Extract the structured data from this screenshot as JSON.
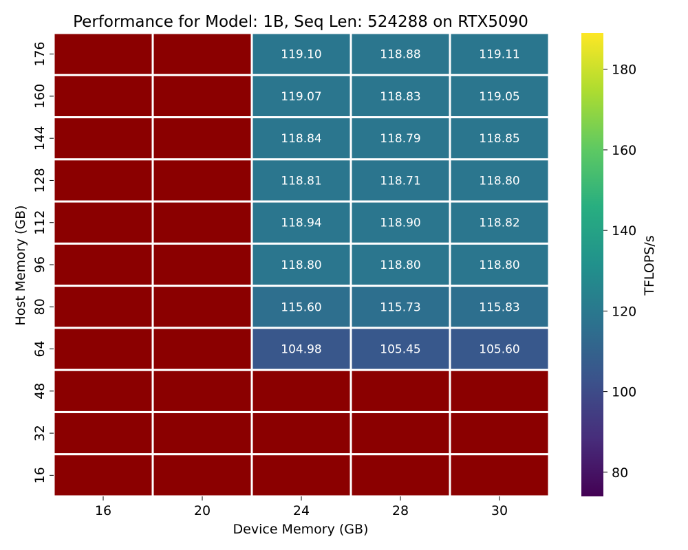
{
  "chart_data": {
    "type": "heatmap",
    "title": "Performance for Model: 1B, Seq Len: 524288 on RTX5090",
    "xlabel": "Device Memory (GB)",
    "ylabel": "Host Memory (GB)",
    "x_categories": [
      "16",
      "20",
      "24",
      "28",
      "30"
    ],
    "y_categories": [
      "176",
      "160",
      "144",
      "128",
      "112",
      "96",
      "80",
      "64",
      "48",
      "32",
      "16"
    ],
    "values": [
      [
        null,
        null,
        119.1,
        118.88,
        119.11
      ],
      [
        null,
        null,
        119.07,
        118.83,
        119.05
      ],
      [
        null,
        null,
        118.84,
        118.79,
        118.85
      ],
      [
        null,
        null,
        118.81,
        118.71,
        118.8
      ],
      [
        null,
        null,
        118.94,
        118.9,
        118.82
      ],
      [
        null,
        null,
        118.8,
        118.8,
        118.8
      ],
      [
        null,
        null,
        115.6,
        115.73,
        115.83
      ],
      [
        null,
        null,
        104.98,
        105.45,
        105.6
      ],
      [
        null,
        null,
        null,
        null,
        null
      ],
      [
        null,
        null,
        null,
        null,
        null
      ],
      [
        null,
        null,
        null,
        null,
        null
      ]
    ],
    "value_format_decimals": 2,
    "missing_color": "#8b0000",
    "colormap": "viridis",
    "colorbar": {
      "label": "TFLOPS/s",
      "range": [
        74,
        189
      ],
      "ticks": [
        "80",
        "100",
        "120",
        "140",
        "160",
        "180"
      ]
    },
    "grid_line_color": "#ffffff"
  }
}
